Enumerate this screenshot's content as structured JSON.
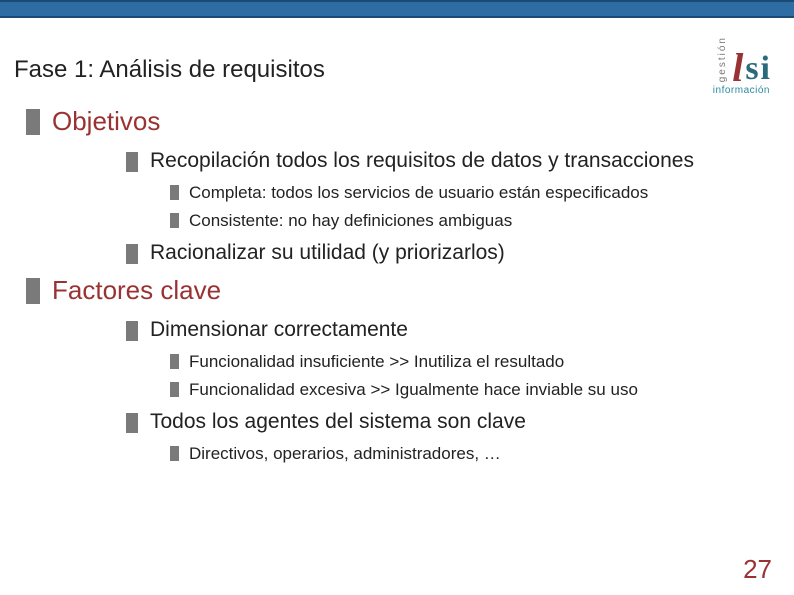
{
  "colors": {
    "bar": "#2e6da4",
    "accent": "#993333",
    "bullet": "#7a7a7a",
    "teal": "#2b6a7a"
  },
  "logo": {
    "vertical": "gestión",
    "l": "l",
    "s": "s",
    "i": "i",
    "sub": "información"
  },
  "title": "Fase 1: Análisis de requisitos",
  "sections": {
    "s1": {
      "heading": "Objetivos",
      "i1": "Recopilación todos los requisitos de datos y transacciones",
      "i1a": "Completa: todos los servicios de usuario están especificados",
      "i1b": "Consistente: no hay definiciones ambiguas",
      "i2": "Racionalizar su utilidad (y priorizarlos)"
    },
    "s2": {
      "heading": "Factores clave",
      "i1": "Dimensionar correctamente",
      "i1a": "Funcionalidad insuficiente >> Inutiliza el resultado",
      "i1b": "Funcionalidad excesiva >> Igualmente hace inviable su uso",
      "i2": "Todos los agentes del sistema son clave",
      "i2a": "Directivos, operarios, administradores, …"
    }
  },
  "page_number": "27"
}
